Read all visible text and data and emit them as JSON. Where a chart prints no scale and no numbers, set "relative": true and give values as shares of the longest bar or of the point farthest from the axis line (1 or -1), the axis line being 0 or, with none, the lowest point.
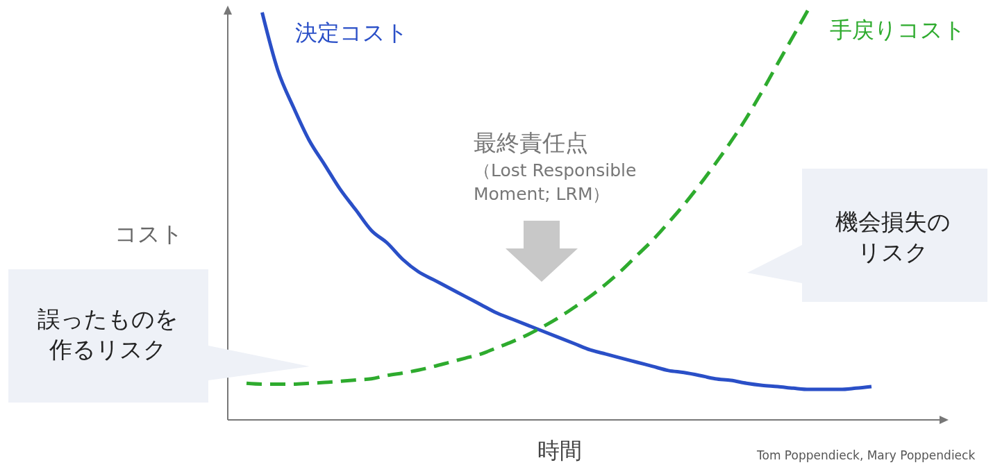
{
  "chart_data": {
    "type": "line",
    "relative": true,
    "xlabel": "時間",
    "ylabel": "コスト",
    "marker": "none",
    "categories": [
      null,
      null,
      null,
      null,
      null,
      null,
      null,
      null,
      null,
      null,
      null,
      null,
      null,
      null,
      null,
      null,
      null,
      null,
      null,
      null,
      null,
      null,
      null,
      null,
      null,
      null,
      null,
      null,
      null,
      null,
      null,
      null,
      null,
      null,
      null,
      null,
      null,
      null,
      null,
      null,
      null
    ],
    "series": [
      {
        "name": "決定コスト",
        "color": "#2a4fc7",
        "line_style": "solid",
        "values": [
          null,
          0.99,
          0.85,
          0.76,
          0.68,
          0.62,
          0.56,
          0.51,
          0.46,
          0.43,
          0.39,
          0.36,
          0.34,
          0.32,
          0.3,
          0.28,
          0.26,
          0.245,
          0.23,
          0.215,
          0.2,
          0.185,
          0.17,
          0.16,
          0.15,
          0.14,
          0.13,
          0.12,
          0.115,
          0.108,
          0.1,
          0.096,
          0.089,
          0.084,
          0.081,
          0.077,
          0.074,
          0.074,
          0.074,
          0.077,
          0.081
        ]
      },
      {
        "name": "手戻りコスト",
        "color": "#2eab2e",
        "line_style": "dashed",
        "values": [
          0.089,
          0.087,
          0.087,
          0.087,
          0.089,
          0.091,
          0.094,
          0.097,
          0.1,
          0.108,
          0.114,
          0.121,
          0.13,
          0.14,
          0.15,
          0.16,
          0.175,
          0.19,
          0.207,
          0.227,
          0.249,
          0.274,
          0.3,
          0.33,
          0.363,
          0.4,
          0.437,
          0.479,
          0.523,
          0.571,
          0.622,
          0.676,
          0.734,
          0.798,
          0.866,
          0.933,
          1,
          null,
          null,
          null,
          null
        ]
      }
    ],
    "annotations": [
      "最終責任点",
      "（Lost Responsible Moment; LRM）",
      "誤ったものを作るリスク",
      "機会損失のリスク",
      "Tom Poppendieck, Mary Poppendieck"
    ]
  }
}
